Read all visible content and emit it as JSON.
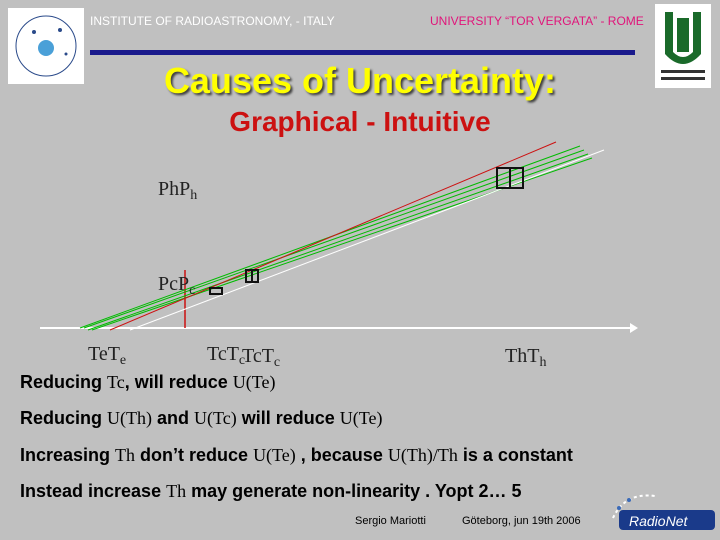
{
  "header": {
    "left": "INSTITUTE OF RADIOASTRONOMY, - ITALY",
    "right": "UNIVERSITY “TOR VERGATA” - ROME"
  },
  "logos": {
    "left_icon": "inaf-logo-icon",
    "right_icon": "tor-vergata-logo-icon",
    "bottom_icon": "radionet-logo-icon",
    "bottom_text": "RadioNet"
  },
  "title": "Causes  of Uncertainty:",
  "subtitle": "Graphical - Intuitive",
  "graph": {
    "y_labels": [
      "Ph",
      "Pc"
    ],
    "x_labels": [
      "Te",
      "Tc",
      "Tc",
      "Th"
    ]
  },
  "lines": {
    "line1": {
      "prefix": "Reducing ",
      "var1": "Tc",
      "mid": ",  will reduce ",
      "var2": "U(Te)"
    },
    "line2": {
      "prefix": "Reducing ",
      "var1": "U(Th)",
      "mid1": " and ",
      "var2": "U(Tc)",
      "mid2": "  will reduce ",
      "var3": "U(Te)"
    },
    "line3": {
      "prefix": "Increasing ",
      "var1": "Th",
      "mid1": " don’t reduce ",
      "var2": "U(Te)",
      "mid2": " , because ",
      "var3": "U(Th)/Th",
      "suffix": " is a constant"
    },
    "line4": {
      "prefix": "Instead increase ",
      "var1": "Th",
      "suffix": " may generate non-linearity .  Yopt 2… 5"
    }
  },
  "footer": {
    "author": "Sergio Mariotti",
    "date": "Göteborg, jun 19th 2006"
  },
  "colors": {
    "background": "#c0c0c0",
    "title": "#ffff00",
    "subtitle": "#cc1111",
    "rule": "#1a1a8c",
    "header_right": "#e0147a"
  }
}
